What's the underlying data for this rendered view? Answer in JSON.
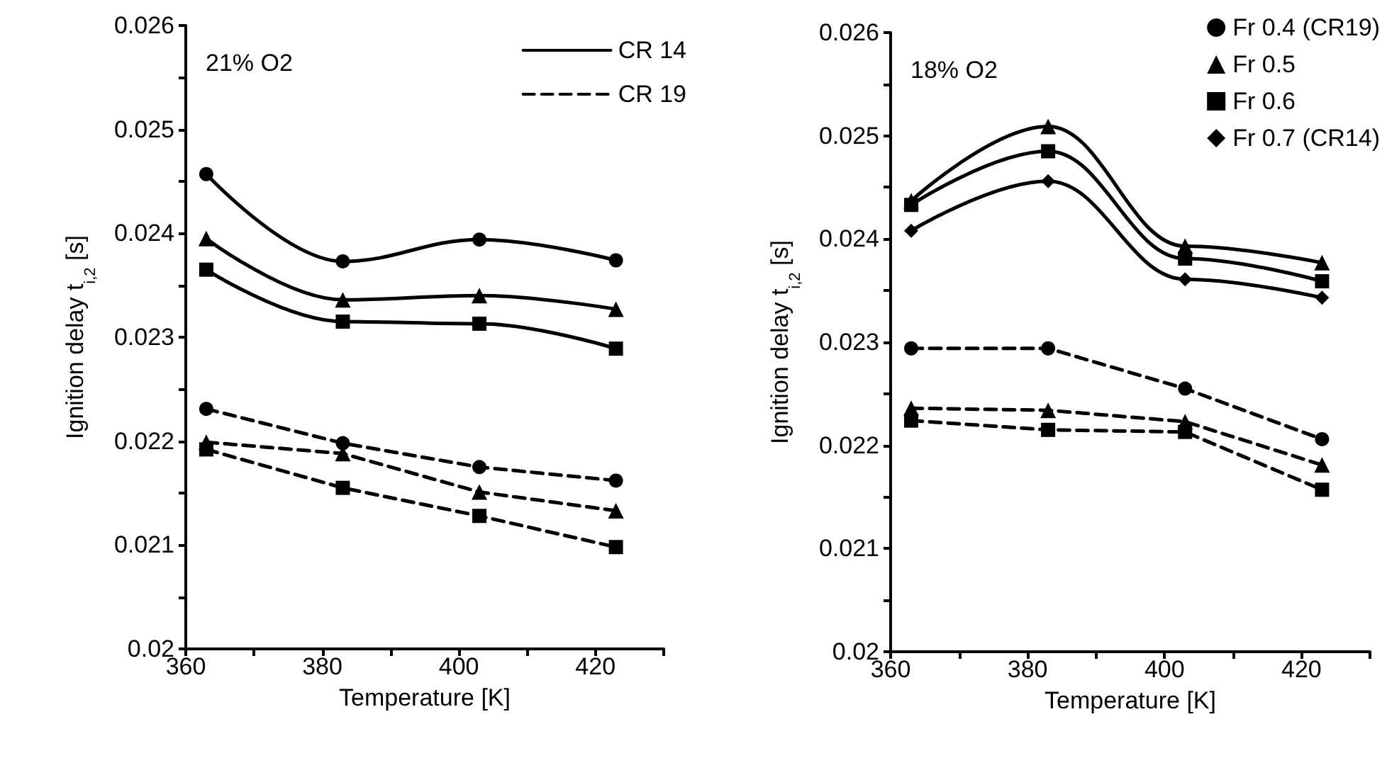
{
  "chart_data": [
    {
      "type": "line",
      "xlabel": "Temperature [K]",
      "ylabel": "Ignition delay t$_{i,2}$ [s]",
      "annotations": [
        "21% O2"
      ],
      "x": [
        363,
        383,
        403,
        423
      ],
      "xlim": [
        360,
        430
      ],
      "xticks": [
        360,
        {
          "value": 370,
          "label": null
        },
        380,
        {
          "value": 390,
          "label": null
        },
        400,
        {
          "value": 410,
          "label": null
        },
        420,
        {
          "value": 430,
          "label": null
        }
      ],
      "ylim": [
        0.02,
        0.026
      ],
      "yticks": [
        0.02,
        {
          "value": 0.0205,
          "label": null
        },
        0.021,
        {
          "value": 0.0215,
          "label": null
        },
        0.022,
        {
          "value": 0.0225,
          "label": null
        },
        0.023,
        {
          "value": 0.0235,
          "label": null
        },
        0.024,
        {
          "value": 0.0245,
          "label": null
        },
        0.025,
        {
          "value": 0.0255,
          "label": null
        },
        0.026
      ],
      "grid": false,
      "legend": "top right",
      "series": [
        {
          "name": "CR 14",
          "color": "#000000",
          "marker": "circle",
          "line_style": "solid",
          "values": [
            0.02457,
            0.02373,
            0.02394,
            0.02374
          ]
        },
        {
          "color": "#000000",
          "marker": "triangle",
          "line_style": "solid",
          "values": [
            0.02395,
            0.02336,
            0.0234,
            0.02327
          ]
        },
        {
          "color": "#000000",
          "marker": "square",
          "line_style": "solid",
          "values": [
            0.02365,
            0.02315,
            0.02313,
            0.02289
          ]
        },
        {
          "name": "CR 19",
          "color": "#000000",
          "marker": "circle",
          "line_style": "dashed",
          "values": [
            0.02231,
            0.02198,
            0.02175,
            0.02162
          ]
        },
        {
          "color": "#000000",
          "marker": "triangle",
          "line_style": "dashed",
          "values": [
            0.02199,
            0.02188,
            0.02151,
            0.02133
          ]
        },
        {
          "color": "#000000",
          "marker": "square",
          "line_style": "dashed",
          "values": [
            0.02192,
            0.02155,
            0.02128,
            0.02098
          ]
        }
      ]
    },
    {
      "type": "line",
      "xlabel": "Temperature [K]",
      "ylabel": "Ignition delay t$_{i,2}$ [s]",
      "annotations": [
        "18% O2"
      ],
      "x": [
        363,
        383,
        403,
        423
      ],
      "xlim": [
        360,
        430
      ],
      "xticks": [
        360,
        {
          "value": 370,
          "label": null
        },
        380,
        {
          "value": 390,
          "label": null
        },
        400,
        {
          "value": 410,
          "label": null
        },
        420,
        {
          "value": 430,
          "label": null
        }
      ],
      "ylim": [
        0.02,
        0.026
      ],
      "yticks": [
        0.02,
        {
          "value": 0.0205,
          "label": null
        },
        0.021,
        {
          "value": 0.0215,
          "label": null
        },
        0.022,
        {
          "value": 0.0225,
          "label": null
        },
        0.023,
        {
          "value": 0.0235,
          "label": null
        },
        0.024,
        {
          "value": 0.0245,
          "label": null
        },
        0.025,
        {
          "value": 0.0255,
          "label": null
        },
        0.026
      ],
      "grid": false,
      "legend": "top right",
      "series": [
        {
          "name": "Fr 0.4 (CR19)",
          "color": "#000000",
          "marker": "circle",
          "line_style": "dashed",
          "values": [
            0.02294,
            0.02294,
            0.02255,
            0.02206
          ]
        },
        {
          "name": "Fr 0.5",
          "color": "#000000",
          "marker": "triangle",
          "line_style": "solid",
          "values": [
            0.02437,
            0.02509,
            0.02393,
            0.02377
          ]
        },
        {
          "name": "Fr 0.6",
          "color": "#000000",
          "marker": "square",
          "line_style": "solid",
          "values": [
            0.02433,
            0.02485,
            0.02381,
            0.02359
          ]
        },
        {
          "name": "Fr 0.7 (CR14)",
          "color": "#000000",
          "marker": "diamond",
          "line_style": "solid",
          "values": [
            0.02408,
            0.02456,
            0.02361,
            0.02343
          ]
        },
        {
          "color": "#000000",
          "marker": "triangle",
          "line_style": "dashed",
          "values": [
            0.02236,
            0.02234,
            0.02223,
            0.02181
          ]
        },
        {
          "color": "#000000",
          "marker": "square",
          "line_style": "dashed",
          "values": [
            0.02224,
            0.02215,
            0.02213,
            0.02157
          ]
        }
      ]
    }
  ]
}
